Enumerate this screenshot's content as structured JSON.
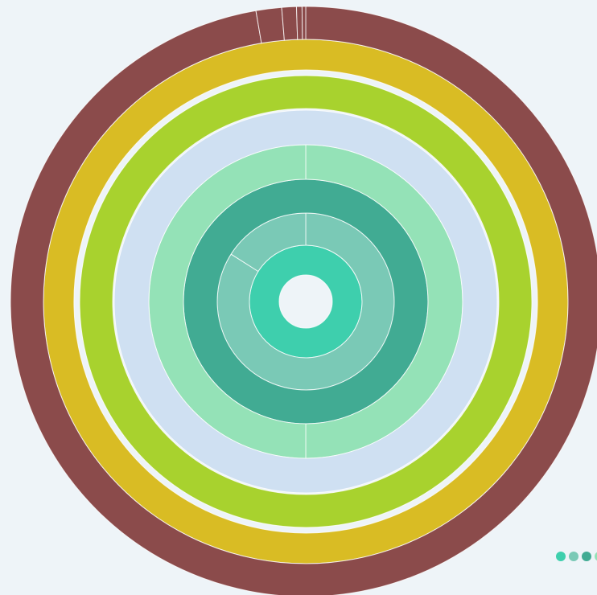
{
  "chart_data": {
    "type": "sunburst",
    "rings": [
      {
        "color": "#3ecfad",
        "values": [
          100
        ]
      },
      {
        "color": "#7ac9b6",
        "values": [
          84,
          16
        ]
      },
      {
        "color": "#41ab93",
        "values": [
          100
        ]
      },
      {
        "color": "#94e2b7",
        "values": [
          50,
          50
        ]
      },
      {
        "color": "#cfe0f2",
        "values": [
          100
        ]
      },
      {
        "color": "#a8d22e",
        "values": [
          100
        ]
      },
      {
        "color": "#d9bc24",
        "values": [
          100
        ]
      },
      {
        "color": "#8b4b4b",
        "values": [
          97.3,
          1.4,
          0.8,
          0.3,
          0.2
        ]
      }
    ]
  }
}
